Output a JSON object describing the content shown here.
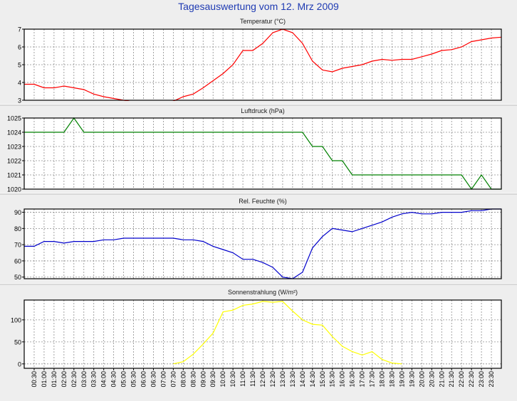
{
  "page": {
    "title": "Tagesauswertung vom 12. Mrz 2009"
  },
  "chart_data": [
    {
      "type": "line",
      "title": "Temperatur (°C)",
      "ylim": [
        3,
        7
      ],
      "yticks": [
        3,
        4,
        5,
        6,
        7
      ],
      "color": "#ff0000",
      "grid": true,
      "x_range": [
        0,
        24
      ],
      "x": [
        0,
        0.33,
        0.5,
        0.75,
        1,
        1.25,
        1.5,
        1.75,
        2,
        2.5,
        3,
        3.5,
        4,
        4.5,
        5,
        5.5,
        6,
        6.5,
        7,
        7.25,
        7.5,
        8,
        8.5,
        9,
        9.5,
        10,
        10.5,
        11,
        11.5,
        12,
        12.5,
        13,
        13.5,
        14,
        14.5,
        15,
        15.5,
        16,
        16.5,
        17,
        17.5,
        18,
        18.5,
        19,
        19.5,
        20,
        20.5,
        21,
        21.5,
        22,
        22.5,
        23,
        23.5,
        24
      ],
      "y": [
        3.9,
        3.9,
        3.9,
        3.8,
        3.7,
        3.7,
        3.7,
        3.75,
        3.8,
        3.7,
        3.6,
        3.35,
        3.2,
        3.1,
        3.0,
        2.9,
        2.9,
        2.9,
        2.9,
        2.9,
        2.95,
        3.2,
        3.35,
        3.7,
        4.1,
        4.5,
        5.0,
        5.8,
        5.8,
        6.2,
        6.8,
        7.0,
        6.8,
        6.2,
        5.2,
        4.7,
        4.6,
        4.8,
        4.9,
        5.0,
        5.2,
        5.3,
        5.25,
        5.3,
        5.3,
        5.45,
        5.6,
        5.8,
        5.85,
        6.0,
        6.3,
        6.4,
        6.5,
        6.55
      ]
    },
    {
      "type": "line",
      "title": "Luftdruck (hPa)",
      "ylim": [
        1020,
        1025
      ],
      "yticks": [
        1020,
        1021,
        1022,
        1023,
        1024,
        1025
      ],
      "color": "#008000",
      "grid": true,
      "x_range": [
        0,
        24
      ],
      "x": [
        0,
        2,
        2.5,
        3,
        14,
        14.5,
        15,
        15.5,
        16,
        16.5,
        17,
        22,
        22.5,
        23,
        23.5,
        24
      ],
      "y": [
        1024,
        1024,
        1025,
        1024,
        1024,
        1023,
        1023,
        1022,
        1022,
        1021,
        1021,
        1021,
        1020,
        1021,
        1020,
        1020
      ]
    },
    {
      "type": "line",
      "title": "Rel. Feuchte (%)",
      "ylim": [
        49,
        92
      ],
      "yticks": [
        50,
        60,
        70,
        80,
        90
      ],
      "color": "#0000cc",
      "grid": true,
      "x_range": [
        0,
        24
      ],
      "x": [
        0,
        0.5,
        1,
        1.5,
        2,
        2.5,
        3,
        3.5,
        4,
        4.5,
        5,
        5.5,
        6,
        6.5,
        7,
        7.5,
        8,
        8.5,
        9,
        9.5,
        10,
        10.5,
        11,
        11.5,
        12,
        12.5,
        13,
        13.5,
        14,
        14.5,
        15,
        15.5,
        16,
        16.5,
        17,
        17.5,
        18,
        18.5,
        19,
        19.5,
        20,
        20.5,
        21,
        21.5,
        22,
        22.5,
        23,
        23.5,
        24
      ],
      "y": [
        69,
        69,
        72,
        72,
        71,
        72,
        72,
        72,
        73,
        73,
        74,
        74,
        74,
        74,
        74,
        74,
        73,
        73,
        72,
        69,
        67,
        65,
        61,
        61,
        59,
        56,
        50,
        49,
        53,
        68,
        75,
        80,
        79,
        78,
        80,
        82,
        84,
        87,
        89,
        90,
        89,
        89,
        90,
        90,
        90,
        91,
        91,
        92,
        92
      ]
    },
    {
      "type": "line",
      "title": "Sonnenstrahlung (W/m²)",
      "ylim": [
        -10,
        145
      ],
      "yticks": [
        0,
        50,
        100
      ],
      "color": "#ffff00",
      "grid": true,
      "x_range": [
        0,
        24
      ],
      "x": [
        7.5,
        8,
        8.5,
        9,
        9.5,
        10,
        10.5,
        11,
        11.5,
        12,
        12.5,
        13,
        13.5,
        14,
        14.5,
        15,
        15.5,
        16,
        16.5,
        17,
        17.5,
        18,
        18.5,
        19
      ],
      "y": [
        0,
        5,
        22,
        45,
        70,
        118,
        122,
        133,
        136,
        142,
        140,
        142,
        120,
        100,
        90,
        88,
        62,
        40,
        28,
        20,
        28,
        10,
        2,
        0
      ]
    }
  ],
  "x_axis": {
    "tick_labels": [
      "00:30",
      "01:00",
      "01:30",
      "02:00",
      "02:30",
      "03:00",
      "03:30",
      "04:00",
      "04:30",
      "05:00",
      "05:30",
      "06:00",
      "06:30",
      "07:00",
      "07:30",
      "08:00",
      "08:30",
      "09:00",
      "09:30",
      "10:00",
      "10:30",
      "11:00",
      "11:30",
      "12:00",
      "12:30",
      "13:00",
      "13:30",
      "14:00",
      "14:30",
      "15:00",
      "15:30",
      "16:00",
      "16:30",
      "17:00",
      "17:30",
      "18:00",
      "18:30",
      "19:00",
      "19:30",
      "20:00",
      "20:30",
      "21:00",
      "21:30",
      "22:00",
      "22:30",
      "23:00",
      "23:30"
    ]
  }
}
